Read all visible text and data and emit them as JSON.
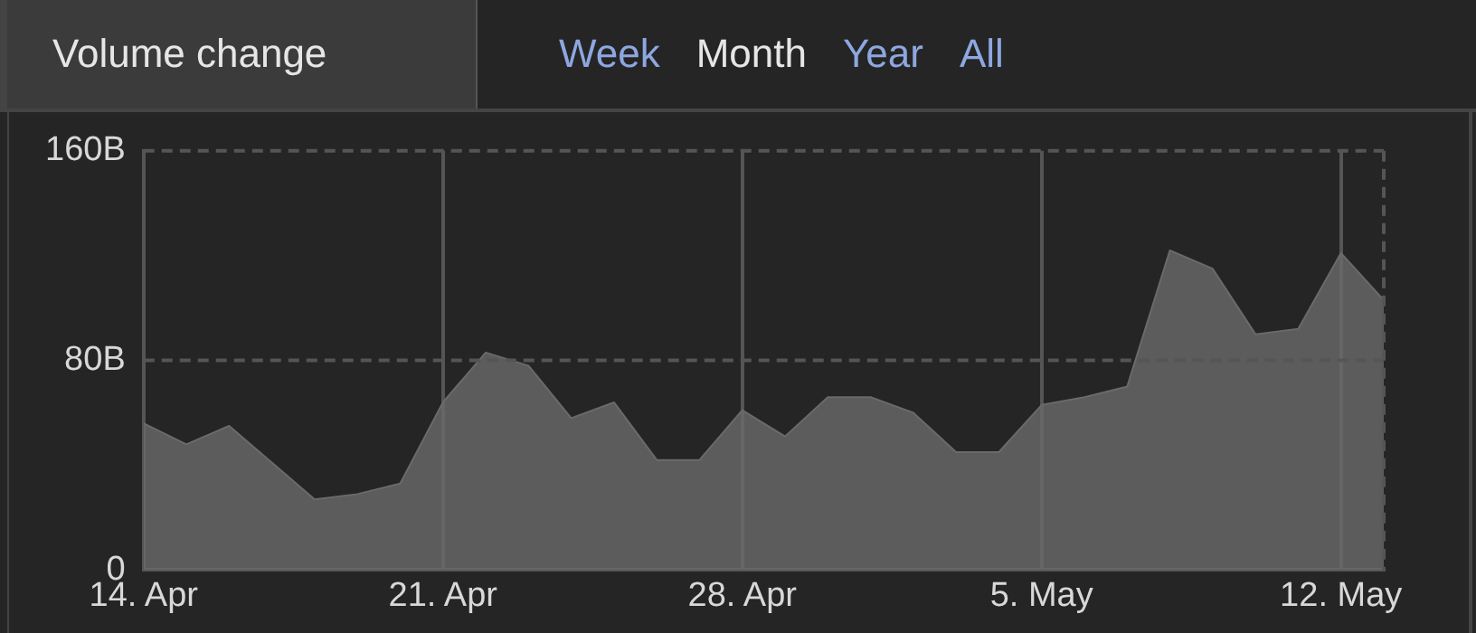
{
  "chart_data": {
    "type": "area",
    "title": "Volume change",
    "annotations": [
      "Week",
      "Month",
      "Year",
      "All"
    ],
    "x": [
      "--04-14",
      "--04-15",
      "--04-16",
      "--04-17",
      "--04-18",
      "--04-19",
      "--04-20",
      "--04-21",
      "--04-22",
      "--04-23",
      "--04-24",
      "--04-25",
      "--04-26",
      "--04-27",
      "--04-28",
      "--04-29",
      "--04-30",
      "--05-01",
      "--05-02",
      "--05-03",
      "--05-04",
      "--05-05",
      "--05-06",
      "--05-07",
      "--05-08",
      "--05-09",
      "--05-10",
      "--05-11",
      "--05-12",
      "--05-13"
    ],
    "series": [
      {
        "color": "#6a6a6a",
        "values": [
          56,
          48,
          55,
          41,
          27,
          29,
          33,
          64,
          83,
          78,
          58,
          64,
          42,
          42,
          61,
          51,
          66,
          66,
          60,
          45,
          45,
          63,
          66,
          70,
          122,
          115,
          90,
          92,
          121,
          103
        ]
      }
    ],
    "xlim": [
      "--04-14",
      "--05-13"
    ],
    "xticks": [
      {
        "value": "--04-14",
        "label": "14. Apr"
      },
      {
        "value": "--04-21",
        "label": "21. Apr"
      },
      {
        "value": "--04-28",
        "label": "28. Apr"
      },
      {
        "value": "--05-05",
        "label": "5. May"
      },
      {
        "value": "--05-12",
        "label": "12. May"
      }
    ],
    "ylim": [
      0,
      160
    ],
    "yticks": [
      0,
      {
        "value": 80,
        "label": "80B"
      },
      {
        "value": 160,
        "label": "160B"
      }
    ],
    "ref_lines": [
      {
        "axis": "y",
        "value": 80,
        "color": "#555555",
        "line_style": "dashed"
      }
    ],
    "grid": "x",
    "legend": false,
    "marker": "none"
  }
}
